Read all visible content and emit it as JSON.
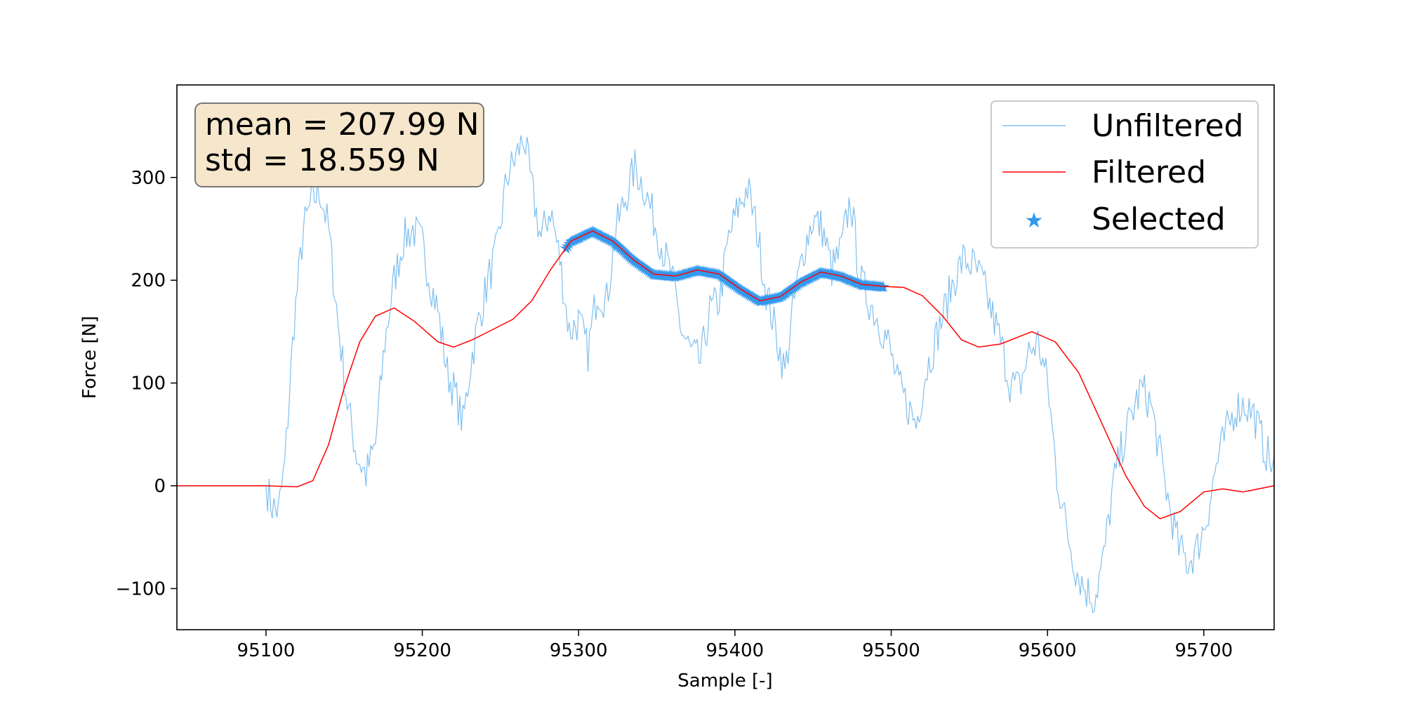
{
  "chart_data": {
    "type": "line",
    "title": "",
    "xlabel": "Sample [-]",
    "ylabel": "Force [N]",
    "xlim": [
      95043,
      95745
    ],
    "ylim": [
      -140,
      390
    ],
    "xticks": [
      95100,
      95200,
      95300,
      95400,
      95500,
      95600,
      95700
    ],
    "yticks": [
      -100,
      0,
      100,
      200,
      300
    ],
    "xtick_labels": [
      "95100",
      "95200",
      "95300",
      "95400",
      "95500",
      "95600",
      "95700"
    ],
    "ytick_labels": [
      "−100",
      "0",
      "100",
      "200",
      "300"
    ],
    "grid": false,
    "legend_position": "upper-right",
    "stats_box": {
      "mean_line": "mean = 207.99 N",
      "std_line": "std = 18.559 N",
      "background": "#f5e6cc"
    },
    "selected_range": [
      95292,
      95495
    ],
    "series": [
      {
        "name": "Unfiltered",
        "color": "#7fbfef",
        "style": "line-noisy",
        "x": [
          95043,
          95100,
          95104,
          95108,
          95112,
          95118,
          95124,
          95130,
          95135,
          95140,
          95146,
          95152,
          95158,
          95164,
          95170,
          95176,
          95182,
          95188,
          95194,
          95200,
          95205,
          95210,
          95216,
          95221,
          95226,
          95231,
          95236,
          95242,
          95248,
          95254,
          95260,
          95265,
          95270,
          95276,
          95282,
          95288,
          95294,
          95300,
          95306,
          95312,
          95318,
          95324,
          95330,
          95336,
          95342,
          95348,
          95354,
          95360,
          95366,
          95372,
          95378,
          95384,
          95390,
          95396,
          95402,
          95408,
          95414,
          95420,
          95426,
          95432,
          95438,
          95444,
          95450,
          95456,
          95462,
          95468,
          95474,
          95480,
          95486,
          95492,
          95498,
          95504,
          95510,
          95516,
          95522,
          95528,
          95534,
          95540,
          95546,
          95552,
          95558,
          95564,
          95570,
          95576,
          95582,
          95588,
          95594,
          95600,
          95606,
          95612,
          95618,
          95624,
          95630,
          95636,
          95642,
          95648,
          95654,
          95660,
          95666,
          95672,
          95678,
          95684,
          95690,
          95696,
          95702,
          95708,
          95714,
          95720,
          95726,
          95732,
          95738,
          95745
        ],
        "y": [
          0,
          0,
          -20,
          -25,
          20,
          160,
          250,
          280,
          285,
          250,
          160,
          80,
          30,
          10,
          40,
          140,
          200,
          240,
          250,
          235,
          200,
          170,
          110,
          90,
          60,
          120,
          160,
          200,
          230,
          300,
          320,
          340,
          290,
          240,
          270,
          220,
          150,
          160,
          130,
          190,
          180,
          250,
          280,
          310,
          290,
          260,
          230,
          200,
          150,
          130,
          120,
          170,
          180,
          240,
          270,
          290,
          250,
          190,
          150,
          110,
          180,
          230,
          260,
          250,
          210,
          230,
          280,
          200,
          180,
          160,
          140,
          100,
          80,
          60,
          110,
          140,
          170,
          200,
          220,
          215,
          200,
          170,
          140,
          100,
          95,
          130,
          140,
          100,
          10,
          -40,
          -80,
          -100,
          -110,
          -70,
          0,
          40,
          70,
          95,
          80,
          30,
          -20,
          -60,
          -75,
          -60,
          -30,
          20,
          50,
          75,
          80,
          70,
          40,
          15
        ],
        "noise_amplitude": 20
      },
      {
        "name": "Filtered",
        "color": "#ff0000",
        "style": "line",
        "x": [
          95043,
          95100,
          95120,
          95130,
          95140,
          95150,
          95160,
          95170,
          95182,
          95195,
          95210,
          95220,
          95232,
          95245,
          95258,
          95270,
          95282,
          95295,
          95309,
          95322,
          95335,
          95348,
          95362,
          95376,
          95390,
          95403,
          95416,
          95429,
          95442,
          95455,
          95468,
          95481,
          95495,
          95508,
          95520,
          95533,
          95545,
          95556,
          95570,
          95590,
          95605,
          95620,
          95635,
          95650,
          95662,
          95672,
          95685,
          95700,
          95712,
          95725,
          95745
        ],
        "y": [
          0,
          0,
          -1,
          5,
          40,
          95,
          140,
          165,
          173,
          160,
          140,
          135,
          142,
          152,
          162,
          180,
          210,
          238,
          248,
          238,
          220,
          206,
          204,
          210,
          206,
          192,
          180,
          184,
          198,
          208,
          204,
          196,
          194,
          193,
          185,
          165,
          142,
          135,
          138,
          150,
          140,
          110,
          60,
          10,
          -20,
          -32,
          -25,
          -6,
          -3,
          -6,
          0
        ]
      },
      {
        "name": "Selected",
        "color": "#3399ee",
        "style": "star-markers"
      }
    ]
  }
}
